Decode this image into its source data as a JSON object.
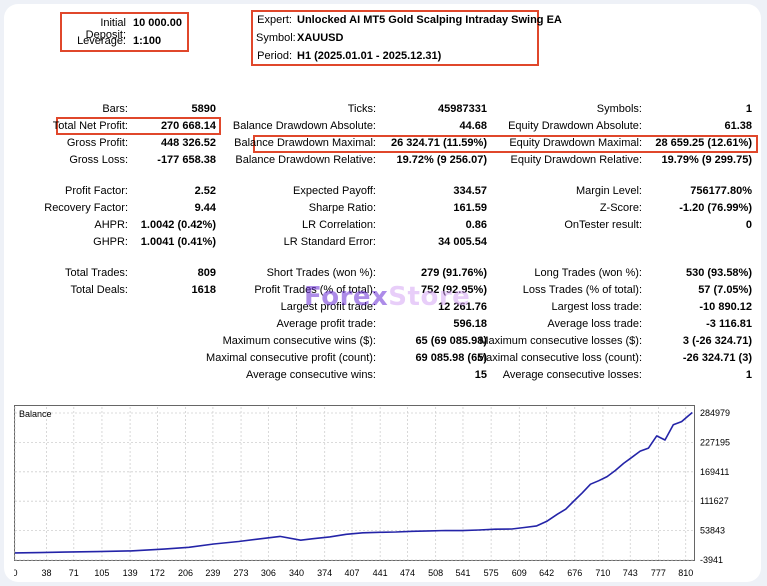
{
  "deposit": {
    "initial_label": "Initial Deposit:",
    "initial_value": "10 000.00",
    "leverage_label": "Leverage:",
    "leverage_value": "1:100"
  },
  "expert": {
    "expert_label": "Expert:",
    "expert_value": "Unlocked AI MT5 Gold Scalping Intraday Swing EA",
    "symbol_label": "Symbol:",
    "symbol_value": "XAUUSD",
    "period_label": "Period:",
    "period_value": "H1 (2025.01.01 - 2025.12.31)"
  },
  "stats": {
    "col1": [
      {
        "label": "Bars:",
        "value": "5890"
      },
      {
        "label": "Total Net Profit:",
        "value": "270 668.14"
      },
      {
        "label": "Gross Profit:",
        "value": "448 326.52"
      },
      {
        "label": "Gross Loss:",
        "value": "-177 658.38"
      },
      {
        "label": "Profit Factor:",
        "value": "2.52"
      },
      {
        "label": "Recovery Factor:",
        "value": "9.44"
      },
      {
        "label": "AHPR:",
        "value": "1.0042 (0.42%)"
      },
      {
        "label": "GHPR:",
        "value": "1.0041 (0.41%)"
      },
      {
        "label": "Total Trades:",
        "value": "809"
      },
      {
        "label": "Total Deals:",
        "value": "1618"
      }
    ],
    "col2": [
      {
        "label": "Ticks:",
        "value": "45987331"
      },
      {
        "label": "Balance Drawdown Absolute:",
        "value": "44.68"
      },
      {
        "label": "Balance Drawdown Maximal:",
        "value": "26 324.71 (11.59%)"
      },
      {
        "label": "Balance Drawdown Relative:",
        "value": "19.72% (9 256.07)"
      },
      {
        "label": "Expected Payoff:",
        "value": "334.57"
      },
      {
        "label": "Sharpe Ratio:",
        "value": "161.59"
      },
      {
        "label": "LR Correlation:",
        "value": "0.86"
      },
      {
        "label": "LR Standard Error:",
        "value": "34 005.54"
      },
      {
        "label": "Short Trades (won %):",
        "value": "279 (91.76%)"
      },
      {
        "label": "Profit Trades (% of total):",
        "value": "752 (92.95%)"
      },
      {
        "label": "Largest profit trade:",
        "value": "12 261.76"
      },
      {
        "label": "Average profit trade:",
        "value": "596.18"
      },
      {
        "label": "Maximum consecutive wins ($):",
        "value": "65 (69 085.98)"
      },
      {
        "label": "Maximal consecutive profit (count):",
        "value": "69 085.98 (65)"
      },
      {
        "label": "Average consecutive wins:",
        "value": "15"
      }
    ],
    "col3": [
      {
        "label": "Symbols:",
        "value": "1"
      },
      {
        "label": "Equity Drawdown Absolute:",
        "value": "61.38"
      },
      {
        "label": "Equity Drawdown Maximal:",
        "value": "28 659.25 (12.61%)"
      },
      {
        "label": "Equity Drawdown Relative:",
        "value": "19.79% (9 299.75)"
      },
      {
        "label": "Margin Level:",
        "value": "756177.80%"
      },
      {
        "label": "Z-Score:",
        "value": "-1.20 (76.99%)"
      },
      {
        "label": "OnTester result:",
        "value": "0"
      },
      {
        "label": "Long Trades (won %):",
        "value": "530 (93.58%)"
      },
      {
        "label": "Loss Trades (% of total):",
        "value": "57 (7.05%)"
      },
      {
        "label": "Largest loss trade:",
        "value": "-10 890.12"
      },
      {
        "label": "Average loss trade:",
        "value": "-3 116.81"
      },
      {
        "label": "Maximum consecutive losses ($):",
        "value": "3 (-26 324.71)"
      },
      {
        "label": "Maximal consecutive loss (count):",
        "value": "-26 324.71 (3)"
      },
      {
        "label": "Average consecutive losses:",
        "value": "1"
      }
    ]
  },
  "watermark": {
    "part1": "Forex",
    "part2": "Store"
  },
  "colors": {
    "highlight": "#e0472b",
    "balance_line": "#2424a8",
    "grid": "#cfcfcf"
  },
  "chart_data": {
    "type": "line",
    "title": "Balance",
    "x_ticks": [
      0,
      38,
      71,
      105,
      139,
      172,
      206,
      239,
      273,
      306,
      340,
      374,
      407,
      441,
      474,
      508,
      541,
      575,
      609,
      642,
      676,
      710,
      743,
      777,
      810
    ],
    "y_ticks": [
      284979,
      227195,
      169411,
      111627,
      53843,
      -3941
    ],
    "xlim": [
      0,
      820
    ],
    "ylim": [
      -3941,
      284979
    ],
    "grid": true,
    "series": [
      {
        "x": [
          0,
          30,
          60,
          100,
          140,
          180,
          210,
          240,
          270,
          300,
          320,
          345,
          360,
          380,
          400,
          420,
          440,
          460,
          480,
          500,
          520,
          540,
          560,
          580,
          600,
          615,
          630,
          642,
          655,
          665,
          675,
          685,
          695,
          705,
          715,
          725,
          735,
          745,
          755,
          765,
          775,
          785,
          795,
          805,
          812,
          818
        ],
        "y": [
          10000,
          10600,
          11500,
          12500,
          14000,
          17500,
          21000,
          27500,
          32500,
          38500,
          42500,
          35000,
          38000,
          41500,
          46500,
          49500,
          50500,
          51000,
          52500,
          53200,
          54000,
          53800,
          55000,
          56500,
          57000,
          60000,
          63000,
          72000,
          86000,
          96000,
          112000,
          128000,
          145000,
          152000,
          160000,
          172000,
          186000,
          198000,
          210000,
          216000,
          240000,
          232000,
          262000,
          268000,
          278000,
          286000
        ]
      }
    ]
  }
}
